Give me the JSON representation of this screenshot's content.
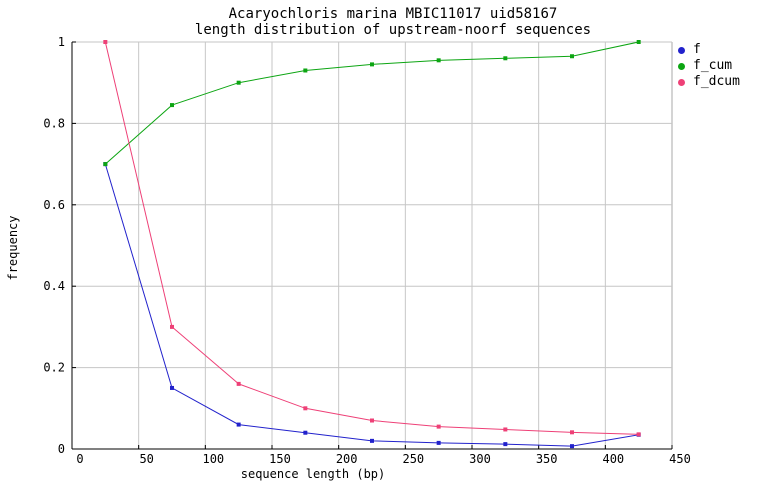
{
  "title": {
    "line1": "Acaryochloris marina MBIC11017 uid58167",
    "line2": "length distribution of upstream-noorf sequences"
  },
  "axes": {
    "x_label": "sequence length (bp)",
    "y_label": "frequency",
    "x_tick_labels": [
      "0",
      "50",
      "100",
      "150",
      "200",
      "250",
      "300",
      "350",
      "400",
      "450"
    ],
    "x_tick_values": [
      0,
      50,
      100,
      150,
      200,
      250,
      300,
      350,
      400,
      450
    ],
    "y_tick_labels": [
      "0",
      "0.2",
      "0.4",
      "0.6",
      "0.8",
      "1"
    ],
    "y_tick_values": [
      0,
      0.2,
      0.4,
      0.6,
      0.8,
      1
    ]
  },
  "legend": {
    "items": [
      {
        "label": "f"
      },
      {
        "label": "f_cum"
      },
      {
        "label": "f_dcum"
      }
    ]
  },
  "colors": {
    "background": "#ffffff",
    "grid": "#c6c6c6",
    "axis_dark": "#000000",
    "axis_light": "#aaaaaa",
    "text": "#000000"
  },
  "chart_data": {
    "type": "line",
    "title": "Acaryochloris marina MBIC11017 uid58167 — length distribution of upstream-noorf sequences",
    "xlabel": "sequence length (bp)",
    "ylabel": "frequency",
    "xlim": [
      0,
      450
    ],
    "ylim": [
      0,
      1
    ],
    "grid": true,
    "legend_position": "outside-top-right",
    "marker": "square",
    "x": [
      25,
      75,
      125,
      175,
      225,
      275,
      325,
      375,
      425
    ],
    "series": [
      {
        "name": "f",
        "color": "#2222cc",
        "values": [
          0.7,
          0.15,
          0.06,
          0.04,
          0.02,
          0.015,
          0.012,
          0.007,
          0.035
        ]
      },
      {
        "name": "f_cum",
        "color": "#0ca512",
        "values": [
          0.7,
          0.845,
          0.9,
          0.93,
          0.945,
          0.955,
          0.96,
          0.965,
          1.0
        ]
      },
      {
        "name": "f_dcum",
        "color": "#ee4077",
        "values": [
          1.0,
          0.3,
          0.16,
          0.1,
          0.07,
          0.055,
          0.048,
          0.041,
          0.036
        ]
      }
    ]
  }
}
